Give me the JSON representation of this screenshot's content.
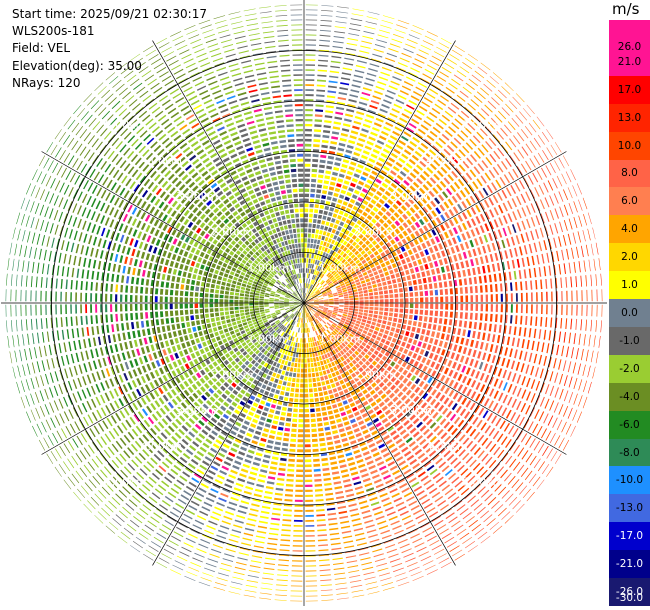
{
  "header": {
    "start_time": "Start time: 2025/09/21 02:30:17",
    "instrument": "WLS200s-181",
    "field": "Field: VEL",
    "elevation": "Elevation(deg): 35.00",
    "nrays": "NRays: 120"
  },
  "colorbar": {
    "unit": "m/s",
    "ticks": [
      "26.0",
      "21.0",
      "17.0",
      "13.0",
      "10.0",
      "8.0",
      "6.0",
      "4.0",
      "2.0",
      "1.0",
      "0.0",
      "-1.0",
      "-2.0",
      "-4.0",
      "-6.0",
      "-8.0",
      "-10.0",
      "-13.0",
      "-17.0",
      "-21.0",
      "-26.0",
      "-30.0"
    ],
    "colors": [
      "#ff1493",
      "#ff1493",
      "#ff0000",
      "#ff2400",
      "#ff4500",
      "#ff6347",
      "#ff7f50",
      "#ffa500",
      "#ffd700",
      "#ffff00",
      "#708090",
      "#696969",
      "#9acd32",
      "#6b8e23",
      "#228b22",
      "#2e8b57",
      "#1e90ff",
      "#4169e1",
      "#0000cd",
      "#00008b",
      "#191970"
    ]
  },
  "chart_data": {
    "type": "ppi",
    "field": "VEL",
    "units": "m/s",
    "elevation_deg": 35.0,
    "n_rays": 120,
    "range_rings_km": [
      1,
      2,
      3,
      4,
      5
    ],
    "ring_labels": [
      "1.00km",
      "2.00km",
      "3.00km",
      "4.00km",
      "5.00km"
    ],
    "max_range_km": 6.0,
    "color_levels": [
      -30,
      -26,
      -21,
      -17,
      -13,
      -10,
      -8,
      -6,
      -4,
      -2,
      -1,
      0,
      1,
      2,
      4,
      6,
      8,
      10,
      13,
      17,
      21,
      26
    ],
    "dominant_velocity_by_azimuth": [
      {
        "azimuth_deg": 0,
        "velocity": -1.5
      },
      {
        "azimuth_deg": 45,
        "velocity": 3.5
      },
      {
        "azimuth_deg": 90,
        "velocity": 8.5
      },
      {
        "azimuth_deg": 135,
        "velocity": 7.0
      },
      {
        "azimuth_deg": 180,
        "velocity": 2.5
      },
      {
        "azimuth_deg": 225,
        "velocity": -3.0
      },
      {
        "azimuth_deg": 270,
        "velocity": -7.0
      },
      {
        "azimuth_deg": 315,
        "velocity": -4.5
      }
    ],
    "grid": true
  }
}
